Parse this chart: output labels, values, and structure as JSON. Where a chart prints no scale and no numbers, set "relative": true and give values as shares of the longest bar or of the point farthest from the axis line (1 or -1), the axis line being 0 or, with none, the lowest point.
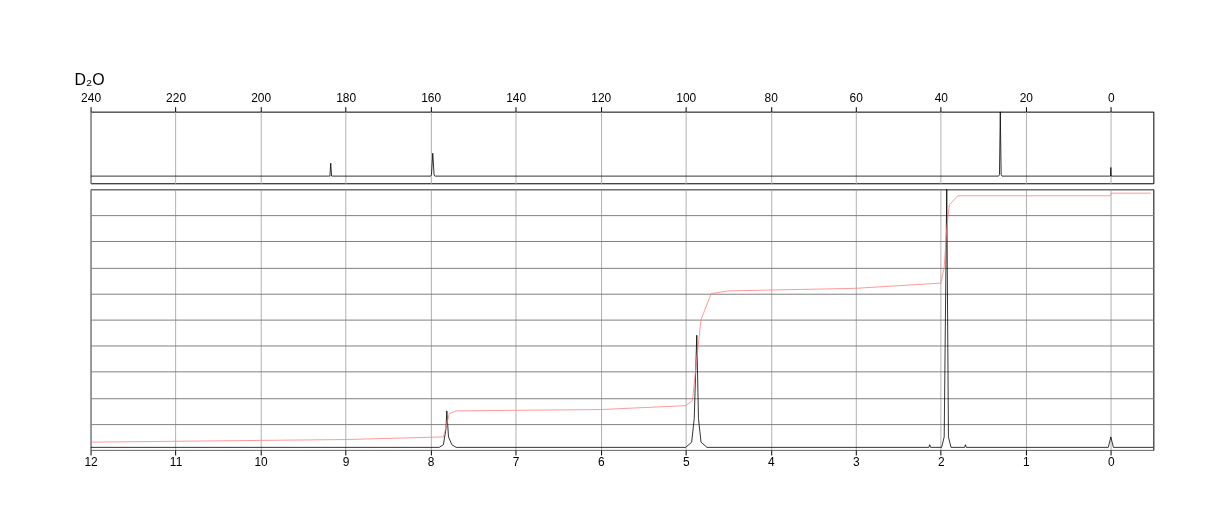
{
  "chart_data": [
    {
      "type": "line",
      "title": "D₂O",
      "relative": true,
      "xlim": [
        240,
        -10
      ],
      "xticks": [
        240,
        220,
        200,
        180,
        160,
        140,
        120,
        100,
        80,
        60,
        40,
        20,
        0
      ],
      "grid": "x",
      "tick_labels": "x",
      "series": [
        {
          "color": "#000000",
          "x": [
            240,
            184,
            183.7,
            183.5,
            183.3,
            183,
            160,
            159.8,
            159.5,
            159.2,
            159,
            26.4,
            26.2,
            26,
            25.8,
            25.6,
            0.3,
            0.1,
            0,
            -0.1,
            -0.3,
            -10
          ],
          "values": [
            0.1,
            0.1,
            0.1,
            0.28,
            0.1,
            0.1,
            0.1,
            0.12,
            0.42,
            0.12,
            0.1,
            0.1,
            0.12,
            1.0,
            0.12,
            0.1,
            0.1,
            0.1,
            0.22,
            0.1,
            0.1,
            0.1
          ]
        }
      ]
    },
    {
      "type": "line",
      "relative": true,
      "xlim": [
        12,
        -0.5
      ],
      "xticks": [
        12,
        11,
        10,
        9,
        8,
        7,
        6,
        5,
        4,
        3,
        2,
        1,
        0
      ],
      "grid": true,
      "tick_labels": "x",
      "series": [
        {
          "color": "#000000",
          "x": [
            12,
            7.9,
            7.85,
            7.82,
            7.81,
            7.79,
            7.75,
            7.7,
            5.0,
            4.93,
            4.9,
            4.87,
            4.85,
            4.82,
            4.75,
            2.14,
            2.13,
            2.12,
            1.99,
            1.96,
            1.93,
            1.91,
            1.88,
            1.72,
            1.71,
            1.7,
            0.03,
            0,
            -0.03,
            -0.5
          ],
          "values": [
            0.01,
            0.01,
            0.02,
            0.08,
            0.15,
            0.05,
            0.02,
            0.01,
            0.01,
            0.03,
            0.12,
            0.44,
            0.12,
            0.03,
            0.01,
            0.01,
            0.02,
            0.01,
            0.01,
            0.05,
            1.0,
            0.05,
            0.01,
            0.01,
            0.02,
            0.01,
            0.01,
            0.05,
            0.01,
            0.01
          ]
        },
        {
          "color": "#ff8080",
          "x": [
            12,
            9,
            7.85,
            7.81,
            7.78,
            7.7,
            6,
            5,
            4.92,
            4.87,
            4.82,
            4.7,
            4.5,
            3,
            2.0,
            1.96,
            1.93,
            1.9,
            1.8,
            1.0,
            0.01,
            -0.01,
            -0.47
          ],
          "values": [
            0.03,
            0.04,
            0.05,
            0.1,
            0.14,
            0.15,
            0.155,
            0.17,
            0.19,
            0.35,
            0.5,
            0.6,
            0.61,
            0.62,
            0.64,
            0.7,
            0.85,
            0.94,
            0.975,
            0.975,
            0.975,
            0.985,
            0.985
          ]
        }
      ]
    }
  ]
}
